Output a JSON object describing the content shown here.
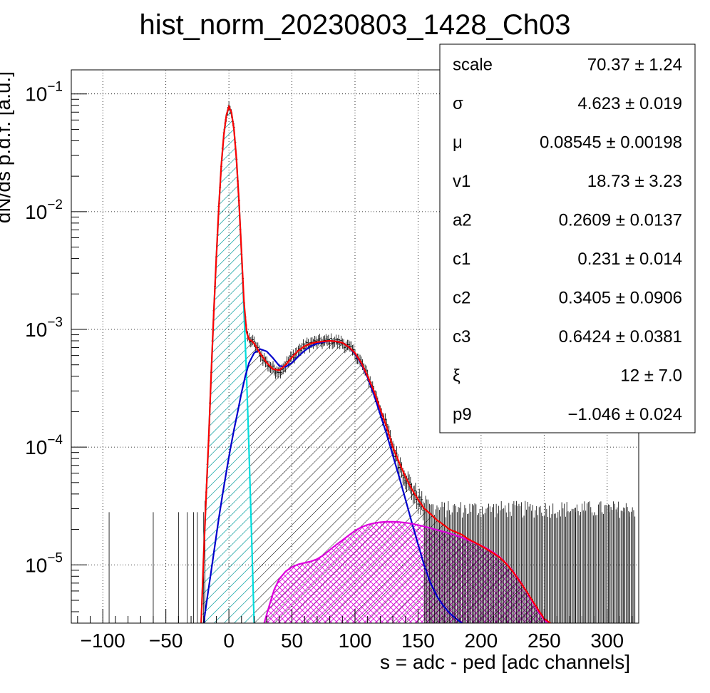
{
  "chart_data": {
    "type": "histogram",
    "title": "hist_norm_20230803_1428_Ch03",
    "xlabel": "s = adc - ped [adc channels]",
    "ylabel": "dN/ds p.d.f. [a.u.]",
    "xlim": [
      -125,
      325
    ],
    "ylim": [
      3.2e-06,
      0.16
    ],
    "yscale": "log",
    "grid": true,
    "x_ticks": [
      -100,
      -50,
      0,
      50,
      100,
      150,
      200,
      250,
      300
    ],
    "x_tick_labels": [
      "−100",
      "−50",
      "0",
      "50",
      "100",
      "150",
      "200",
      "250",
      "300"
    ],
    "y_ticks": [
      {
        "value": 0.1,
        "base": "10",
        "exp": "−1"
      },
      {
        "value": 0.01,
        "base": "10",
        "exp": "−2"
      },
      {
        "value": 0.001,
        "base": "10",
        "exp": "−3"
      },
      {
        "value": 0.0001,
        "base": "10",
        "exp": "−4"
      },
      {
        "value": 1e-05,
        "base": "10",
        "exp": "−5"
      }
    ],
    "colors": {
      "total": "#ff0000",
      "pedestal": "#00dddd",
      "single_pe": "#0000cc",
      "multi_pe": "#dd00dd",
      "data": "#000000"
    },
    "series": [
      {
        "role": "total",
        "x": [
          -22,
          -20,
          -18,
          -16,
          -14,
          -12,
          -10,
          -8,
          -6,
          -4,
          -2,
          0,
          2,
          4,
          6,
          8,
          10,
          12,
          14,
          16,
          18,
          20,
          25,
          30,
          35,
          40,
          45,
          50,
          55,
          60,
          65,
          70,
          75,
          80,
          85,
          90,
          95,
          100,
          105,
          110,
          115,
          120,
          125,
          130,
          135,
          140,
          145,
          150,
          155,
          160,
          165,
          170,
          175,
          180,
          185,
          190,
          195,
          200,
          205,
          210,
          215,
          220,
          225,
          230,
          235,
          240,
          245,
          250,
          255
        ],
        "y": [
          3.2e-06,
          1.2e-05,
          4e-05,
          0.00012,
          0.00042,
          0.0014,
          0.004,
          0.011,
          0.025,
          0.045,
          0.066,
          0.078,
          0.07,
          0.05,
          0.028,
          0.012,
          0.0045,
          0.0017,
          0.00095,
          0.00082,
          0.0008,
          0.00076,
          0.00062,
          0.00052,
          0.00046,
          0.00045,
          0.0005,
          0.00058,
          0.00066,
          0.00072,
          0.00076,
          0.00078,
          0.00079,
          0.0008,
          0.00079,
          0.00077,
          0.00071,
          0.00063,
          0.00052,
          0.0004,
          0.0003,
          0.00021,
          0.00015,
          0.0001,
          7.4e-05,
          5.6e-05,
          4.4e-05,
          3.6e-05,
          3e-05,
          2.7e-05,
          2.4e-05,
          2.2e-05,
          2e-05,
          1.9e-05,
          1.8e-05,
          1.65e-05,
          1.55e-05,
          1.45e-05,
          1.35e-05,
          1.25e-05,
          1.15e-05,
          1.02e-05,
          8.8e-06,
          7.4e-06,
          6.2e-06,
          5.1e-06,
          4.2e-06,
          3.5e-06,
          3.2e-06
        ]
      },
      {
        "role": "pedestal",
        "x": [
          -22,
          -20,
          -18,
          -16,
          -14,
          -12,
          -10,
          -8,
          -6,
          -4,
          -2,
          0,
          2,
          4,
          6,
          8,
          10,
          12,
          14,
          16,
          18,
          20
        ],
        "y": [
          3.2e-06,
          1.2e-05,
          4e-05,
          0.00012,
          0.00042,
          0.0014,
          0.004,
          0.011,
          0.025,
          0.045,
          0.066,
          0.078,
          0.07,
          0.05,
          0.028,
          0.012,
          0.0045,
          0.0014,
          0.0004,
          9e-05,
          1.7e-05,
          3.2e-06
        ]
      },
      {
        "role": "single_pe",
        "x": [
          -20,
          -17,
          -14,
          -11,
          -8,
          -5,
          -2,
          1,
          4,
          7,
          10,
          13,
          16,
          20,
          25,
          30,
          35,
          40,
          45,
          50,
          55,
          60,
          65,
          70,
          75,
          80,
          85,
          90,
          95,
          100,
          105,
          110,
          115,
          120,
          125,
          130,
          135,
          140,
          145,
          150,
          155,
          160,
          165,
          170,
          175,
          180,
          185
        ],
        "y": [
          3.2e-06,
          5.4e-06,
          8.9e-06,
          1.5e-05,
          2.5e-05,
          4e-05,
          6.2e-05,
          9.5e-05,
          0.00014,
          0.0002,
          0.00029,
          0.0004,
          0.00052,
          0.00063,
          0.00068,
          0.00065,
          0.00057,
          0.00049,
          0.00048,
          0.00052,
          0.00059,
          0.00066,
          0.00072,
          0.00076,
          0.00078,
          0.0008,
          0.00079,
          0.00077,
          0.00071,
          0.00062,
          0.00051,
          0.00039,
          0.00028,
          0.00019,
          0.00013,
          8.5e-05,
          5.6e-05,
          3.6e-05,
          2.3e-05,
          1.5e-05,
          9.8e-06,
          7e-06,
          5.4e-06,
          4.5e-06,
          3.9e-06,
          3.5e-06,
          3.2e-06
        ]
      },
      {
        "role": "multi_pe",
        "x": [
          28,
          32,
          36,
          40,
          45,
          50,
          55,
          60,
          65,
          70,
          75,
          80,
          85,
          90,
          95,
          100,
          105,
          110,
          115,
          120,
          125,
          130,
          135,
          140,
          145,
          150,
          155,
          160,
          165,
          170,
          175,
          180,
          185,
          190,
          195,
          200,
          205,
          210,
          215,
          220,
          225,
          230,
          235,
          240,
          245,
          250,
          253
        ],
        "y": [
          3.2e-06,
          4.5e-06,
          6.2e-06,
          7.6e-06,
          8.8e-06,
          9.6e-06,
          1.01e-05,
          1.04e-05,
          1.07e-05,
          1.12e-05,
          1.21e-05,
          1.34e-05,
          1.48e-05,
          1.62e-05,
          1.78e-05,
          1.95e-05,
          2.09e-05,
          2.19e-05,
          2.26e-05,
          2.3e-05,
          2.32e-05,
          2.32e-05,
          2.31e-05,
          2.28e-05,
          2.24e-05,
          2.18e-05,
          2.12e-05,
          2.05e-05,
          1.98e-05,
          1.92e-05,
          1.85e-05,
          1.78e-05,
          1.7e-05,
          1.62e-05,
          1.54e-05,
          1.46e-05,
          1.37e-05,
          1.27e-05,
          1.16e-05,
          1.03e-05,
          8.9e-06,
          7.5e-06,
          6.2e-06,
          5e-06,
          4.1e-06,
          3.4e-06,
          3.2e-06
        ]
      }
    ],
    "stats_box": {
      "rows": [
        {
          "name": "scale",
          "value": "70.37 ± 1.24"
        },
        {
          "name": "σ",
          "value": "4.623 ± 0.019"
        },
        {
          "name": "μ",
          "value": "0.08545 ± 0.00198"
        },
        {
          "name": "v1",
          "value": "18.73 ± 3.23"
        },
        {
          "name": "a2",
          "value": "0.2609 ± 0.0137"
        },
        {
          "name": "c1",
          "value": "0.231 ± 0.014"
        },
        {
          "name": "c2",
          "value": "0.3405 ± 0.0906"
        },
        {
          "name": "c3",
          "value": "0.6424 ± 0.0381"
        },
        {
          "name": "ξ",
          "value": "12 ± 7.0"
        },
        {
          "name": "p9",
          "value": "−1.046 ± 0.024"
        }
      ]
    }
  }
}
